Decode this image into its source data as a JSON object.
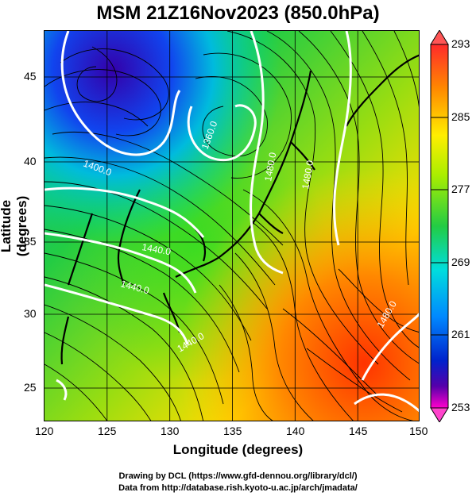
{
  "title": "MSM 21Z16Nov2023 (850.0hPa)",
  "axes": {
    "xlabel": "Longitude (degrees)",
    "ylabel": "Latitude  (degrees)",
    "xticks": [
      "120",
      "125",
      "130",
      "135",
      "140",
      "145",
      "150"
    ],
    "yticks": [
      "45",
      "40",
      "35",
      "30",
      "25"
    ]
  },
  "colorbar": {
    "labels": [
      "293",
      "285",
      "277",
      "269",
      "261",
      "253"
    ],
    "colors": [
      "#ff2a2a",
      "#ff8800",
      "#ffee00",
      "#aaee00",
      "#22cc44",
      "#00dddd",
      "#0088ff",
      "#0022cc",
      "#5500aa",
      "#ff00cc"
    ]
  },
  "contours": {
    "labels": [
      "1400.0",
      "1360.0",
      "1440.0",
      "1480.0",
      "1480.0",
      "1440.0",
      "1480.0",
      "1440.0"
    ]
  },
  "credits": {
    "line1": "Drawing by DCL (https://www.gfd-dennou.org/library/dcl/)",
    "line2": "Data from http://database.rish.kyoto-u.ac.jp/arch/jmadata/"
  }
}
